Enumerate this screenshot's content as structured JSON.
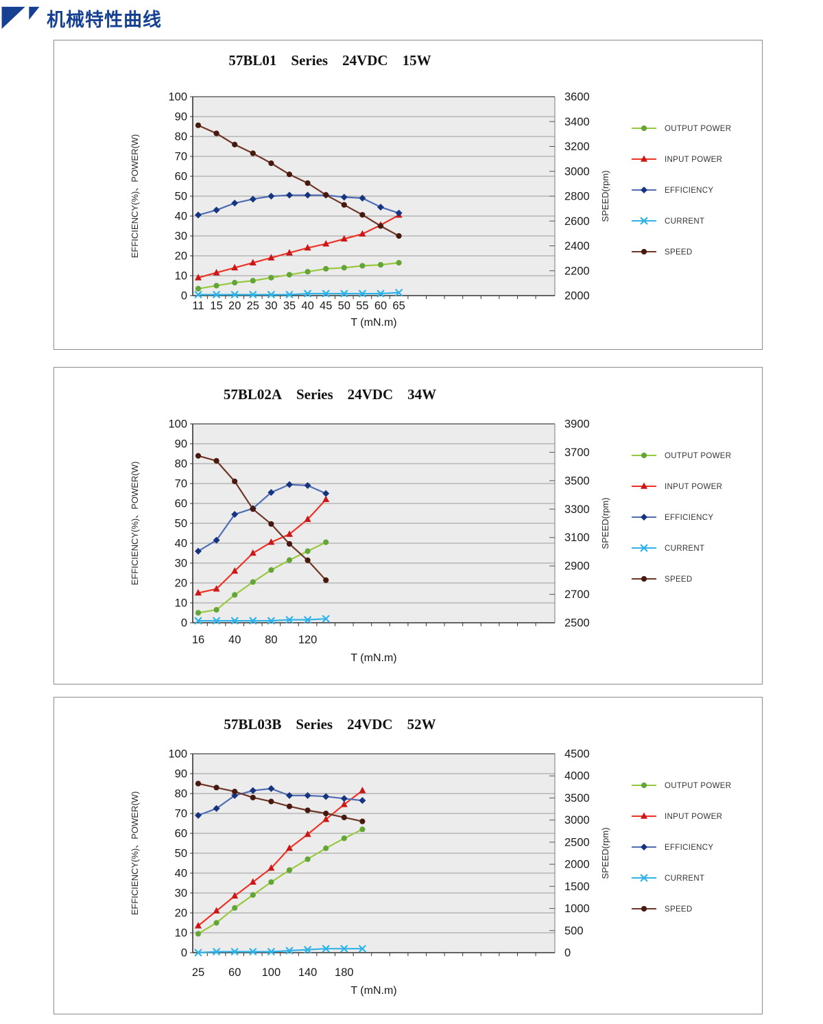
{
  "header": {
    "title": "机械特性曲线"
  },
  "colors": {
    "brand_blue": "#164193",
    "plot_bg": "#ECECEC",
    "grid": "#9A9A9A",
    "axis": "#333333",
    "panel_border": "#8A8A8A",
    "text": "#1A1A1A"
  },
  "legend": [
    {
      "label": "OUTPUT POWER",
      "shape": "circle",
      "line": "#97C93D",
      "marker": "#63A537"
    },
    {
      "label": "INPUT POWER",
      "shape": "triangle",
      "line": "#EE3224",
      "marker": "#CC1719"
    },
    {
      "label": "EFFICIENCY",
      "shape": "diamond",
      "line": "#4F6CB5",
      "marker": "#16357E"
    },
    {
      "label": "CURRENT",
      "shape": "x",
      "line": "#2FB3E8",
      "marker": "#2FB3E8"
    },
    {
      "label": "SPEED",
      "shape": "circle",
      "line": "#6F3526",
      "marker": "#471A10"
    }
  ],
  "chart_data": [
    {
      "type": "line",
      "title": "57BL01  Series  24VDC  15W",
      "xlabel": "T (mN.m)",
      "left_axis_title": "EFFICIENCY(%)、POWER(W)",
      "right_axis_title": "SPEED(rpm)",
      "grid": true,
      "legend_position": "right",
      "left_ticks": [
        100,
        90,
        80,
        70,
        60,
        50,
        40,
        30,
        20,
        10,
        0
      ],
      "left_range": [
        0,
        100
      ],
      "right_ticks": [
        "3600",
        "3400",
        "3200",
        "3000",
        "2800",
        "2600",
        "2400",
        "2200",
        "2000"
      ],
      "right_range": [
        2000,
        3600
      ],
      "x": [
        11,
        15,
        20,
        25,
        30,
        35,
        40,
        45,
        50,
        55,
        60,
        65
      ],
      "x_tick_labels": [
        "11",
        "15",
        "20",
        "25",
        "30",
        "35",
        "40",
        "45",
        "50",
        "55",
        "60",
        "65"
      ],
      "series": [
        {
          "name": "OUTPUT POWER",
          "axis": "left",
          "values": [
            3.5,
            5,
            6.5,
            7.5,
            9,
            10.5,
            12,
            13.5,
            14,
            15,
            15.5,
            16.5
          ]
        },
        {
          "name": "INPUT POWER",
          "axis": "left",
          "values": [
            9,
            11.5,
            14,
            16.5,
            19,
            21.5,
            24,
            26,
            28.5,
            31,
            35.5,
            40.5
          ]
        },
        {
          "name": "EFFICIENCY",
          "axis": "left",
          "values": [
            40.5,
            43,
            46.5,
            48.5,
            50,
            50.5,
            50.5,
            50.5,
            49.5,
            49,
            44.5,
            41.5
          ]
        },
        {
          "name": "CURRENT",
          "axis": "left",
          "values": [
            0.5,
            0.5,
            0.5,
            0.5,
            0.5,
            0.5,
            1,
            1,
            1,
            1,
            1,
            1.5
          ]
        },
        {
          "name": "SPEED",
          "axis": "right",
          "values": [
            3370,
            3305,
            3215,
            3145,
            3065,
            2975,
            2905,
            2810,
            2730,
            2650,
            2560,
            2480
          ]
        }
      ]
    },
    {
      "type": "line",
      "title": "57BL02A  Series  24VDC  34W",
      "xlabel": "T (mN.m)",
      "left_axis_title": "EFFICIENCY(%)、POWER(W)",
      "right_axis_title": "SPEED(rpm)",
      "grid": true,
      "legend_position": "right",
      "left_ticks": [
        100,
        90,
        80,
        70,
        60,
        50,
        40,
        30,
        20,
        10,
        0
      ],
      "left_range": [
        0,
        100
      ],
      "right_ticks": [
        "3900",
        "3700",
        "3500",
        "3300",
        "3100",
        "2900",
        "2700",
        "2500"
      ],
      "right_range": [
        2500,
        3900
      ],
      "x": [
        16,
        28,
        40,
        60,
        80,
        100,
        120,
        140
      ],
      "x_tick_labels": [
        "16",
        "",
        "40",
        "",
        "80",
        "",
        "120",
        ""
      ],
      "series": [
        {
          "name": "OUTPUT POWER",
          "axis": "left",
          "values": [
            5,
            6.5,
            14,
            20.5,
            26.5,
            31.5,
            36,
            40.5
          ]
        },
        {
          "name": "INPUT POWER",
          "axis": "left",
          "values": [
            15,
            17,
            26,
            35,
            40.5,
            44.5,
            52,
            62
          ]
        },
        {
          "name": "EFFICIENCY",
          "axis": "left",
          "values": [
            36,
            41.5,
            54.5,
            57.5,
            65.5,
            69.5,
            69,
            65
          ]
        },
        {
          "name": "CURRENT",
          "axis": "left",
          "values": [
            1,
            1,
            1,
            1,
            1,
            1.5,
            1.5,
            2
          ]
        },
        {
          "name": "SPEED",
          "axis": "right",
          "values": [
            3675,
            3640,
            3495,
            3300,
            3195,
            3055,
            2940,
            2800
          ]
        }
      ]
    },
    {
      "type": "line",
      "title": "57BL03B  Series  24VDC  52W",
      "xlabel": "T (mN.m)",
      "left_axis_title": "EFFICIENCY(%)、POWER(W)",
      "right_axis_title": "SPEED(rpm)",
      "grid": true,
      "legend_position": "right",
      "left_ticks": [
        100,
        90,
        80,
        70,
        60,
        50,
        40,
        30,
        20,
        10,
        0
      ],
      "left_range": [
        0,
        100
      ],
      "right_ticks": [
        "4500",
        "4000",
        "3500",
        "3000",
        "2500",
        "2000",
        "1500",
        "1000",
        "500",
        "0"
      ],
      "right_range": [
        0,
        4500
      ],
      "x": [
        25,
        42,
        60,
        80,
        100,
        120,
        140,
        160,
        180,
        200
      ],
      "x_tick_labels": [
        "25",
        "",
        "60",
        "",
        "100",
        "",
        "140",
        "",
        "180",
        ""
      ],
      "series": [
        {
          "name": "OUTPUT POWER",
          "axis": "left",
          "values": [
            9.5,
            15,
            22.5,
            29,
            35.5,
            41.5,
            47,
            52.5,
            57.5,
            62
          ]
        },
        {
          "name": "INPUT POWER",
          "axis": "left",
          "values": [
            13.5,
            21,
            28.5,
            35.5,
            42.5,
            52.5,
            59.5,
            67,
            74.5,
            81.5
          ]
        },
        {
          "name": "EFFICIENCY",
          "axis": "left",
          "values": [
            69,
            72.5,
            79,
            81.5,
            82.5,
            79,
            79,
            78.5,
            77.5,
            76.5
          ]
        },
        {
          "name": "CURRENT",
          "axis": "left",
          "values": [
            0,
            0.5,
            0.5,
            0.5,
            0.5,
            1,
            1.5,
            2,
            2,
            2
          ]
        },
        {
          "name": "SPEED",
          "axis": "right",
          "values": [
            3825,
            3735,
            3645,
            3510,
            3420,
            3310,
            3220,
            3150,
            3060,
            2970
          ]
        }
      ]
    }
  ]
}
